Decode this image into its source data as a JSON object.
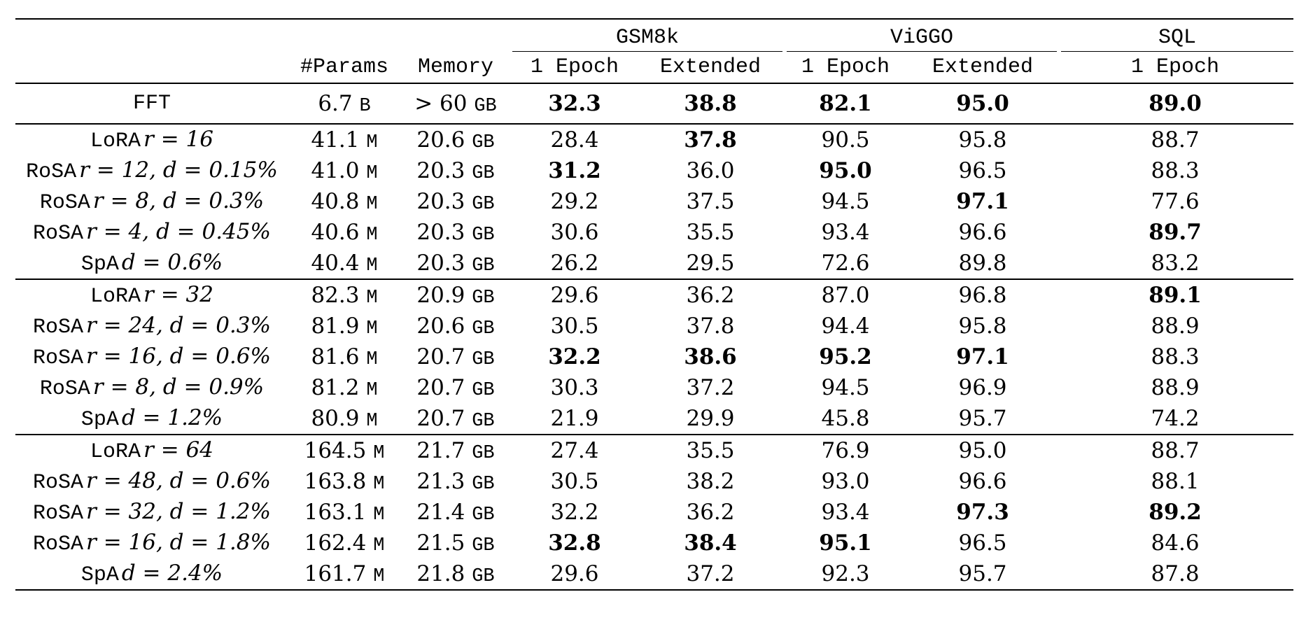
{
  "header": {
    "group_gsm8k": "GSM8k",
    "group_viggo": "ViGGO",
    "group_sql": "SQL",
    "col_params": "#Params",
    "col_memory": "Memory",
    "col_1epoch": "1 Epoch",
    "col_extended": "Extended"
  },
  "fft": {
    "method": "FFT",
    "params_num": "6.7",
    "params_unit": "B",
    "memory_num": "> 60",
    "memory_unit": "GB",
    "gsm_1": "32.3",
    "gsm_ext": "38.8",
    "viggo_1": "82.1",
    "viggo_ext": "95.0",
    "sql_1": "89.0"
  },
  "groups": [
    {
      "rows": [
        {
          "name": "LoRA",
          "cfg": "r = 16",
          "params": "41.1",
          "punit": "M",
          "mem": "20.6",
          "munit": "GB",
          "v": [
            "28.4",
            "37.8",
            "90.5",
            "95.8",
            "88.7"
          ],
          "bold": [
            false,
            true,
            false,
            false,
            false
          ]
        },
        {
          "name": "RoSA",
          "cfg": "r = 12, d = 0.15%",
          "params": "41.0",
          "punit": "M",
          "mem": "20.3",
          "munit": "GB",
          "v": [
            "31.2",
            "36.0",
            "95.0",
            "96.5",
            "88.3"
          ],
          "bold": [
            true,
            false,
            true,
            false,
            false
          ]
        },
        {
          "name": "RoSA",
          "cfg": "r = 8, d = 0.3%",
          "params": "40.8",
          "punit": "M",
          "mem": "20.3",
          "munit": "GB",
          "v": [
            "29.2",
            "37.5",
            "94.5",
            "97.1",
            "77.6"
          ],
          "bold": [
            false,
            false,
            false,
            true,
            false
          ]
        },
        {
          "name": "RoSA",
          "cfg": "r = 4, d = 0.45%",
          "params": "40.6",
          "punit": "M",
          "mem": "20.3",
          "munit": "GB",
          "v": [
            "30.6",
            "35.5",
            "93.4",
            "96.6",
            "89.7"
          ],
          "bold": [
            false,
            false,
            false,
            false,
            true
          ]
        },
        {
          "name": "SpA",
          "cfg": "d = 0.6%",
          "params": "40.4",
          "punit": "M",
          "mem": "20.3",
          "munit": "GB",
          "v": [
            "26.2",
            "29.5",
            "72.6",
            "89.8",
            "83.2"
          ],
          "bold": [
            false,
            false,
            false,
            false,
            false
          ]
        }
      ]
    },
    {
      "rows": [
        {
          "name": "LoRA",
          "cfg": "r = 32",
          "params": "82.3",
          "punit": "M",
          "mem": "20.9",
          "munit": "GB",
          "v": [
            "29.6",
            "36.2",
            "87.0",
            "96.8",
            "89.1"
          ],
          "bold": [
            false,
            false,
            false,
            false,
            true
          ]
        },
        {
          "name": "RoSA",
          "cfg": "r = 24, d = 0.3%",
          "params": "81.9",
          "punit": "M",
          "mem": "20.6",
          "munit": "GB",
          "v": [
            "30.5",
            "37.8",
            "94.4",
            "95.8",
            "88.9"
          ],
          "bold": [
            false,
            false,
            false,
            false,
            false
          ]
        },
        {
          "name": "RoSA",
          "cfg": "r = 16, d = 0.6%",
          "params": "81.6",
          "punit": "M",
          "mem": "20.7",
          "munit": "GB",
          "v": [
            "32.2",
            "38.6",
            "95.2",
            "97.1",
            "88.3"
          ],
          "bold": [
            true,
            true,
            true,
            true,
            false
          ]
        },
        {
          "name": "RoSA",
          "cfg": "r = 8, d = 0.9%",
          "params": "81.2",
          "punit": "M",
          "mem": "20.7",
          "munit": "GB",
          "v": [
            "30.3",
            "37.2",
            "94.5",
            "96.9",
            "88.9"
          ],
          "bold": [
            false,
            false,
            false,
            false,
            false
          ]
        },
        {
          "name": "SpA",
          "cfg": "d = 1.2%",
          "params": "80.9",
          "punit": "M",
          "mem": "20.7",
          "munit": "GB",
          "v": [
            "21.9",
            "29.9",
            "45.8",
            "95.7",
            "74.2"
          ],
          "bold": [
            false,
            false,
            false,
            false,
            false
          ]
        }
      ]
    },
    {
      "rows": [
        {
          "name": "LoRA",
          "cfg": "r = 64",
          "params": "164.5",
          "punit": "M",
          "mem": "21.7",
          "munit": "GB",
          "v": [
            "27.4",
            "35.5",
            "76.9",
            "95.0",
            "88.7"
          ],
          "bold": [
            false,
            false,
            false,
            false,
            false
          ]
        },
        {
          "name": "RoSA",
          "cfg": "r = 48, d = 0.6%",
          "params": "163.8",
          "punit": "M",
          "mem": "21.3",
          "munit": "GB",
          "v": [
            "30.5",
            "38.2",
            "93.0",
            "96.6",
            "88.1"
          ],
          "bold": [
            false,
            false,
            false,
            false,
            false
          ]
        },
        {
          "name": "RoSA",
          "cfg": "r = 32, d = 1.2%",
          "params": "163.1",
          "punit": "M",
          "mem": "21.4",
          "munit": "GB",
          "v": [
            "32.2",
            "36.2",
            "93.4",
            "97.3",
            "89.2"
          ],
          "bold": [
            false,
            false,
            false,
            true,
            true
          ]
        },
        {
          "name": "RoSA",
          "cfg": "r = 16, d = 1.8%",
          "params": "162.4",
          "punit": "M",
          "mem": "21.5",
          "munit": "GB",
          "v": [
            "32.8",
            "38.4",
            "95.1",
            "96.5",
            "84.6"
          ],
          "bold": [
            true,
            true,
            true,
            false,
            false
          ]
        },
        {
          "name": "SpA",
          "cfg": "d = 2.4%",
          "params": "161.7",
          "punit": "M",
          "mem": "21.8",
          "munit": "GB",
          "v": [
            "29.6",
            "37.2",
            "92.3",
            "95.7",
            "87.8"
          ],
          "bold": [
            false,
            false,
            false,
            false,
            false
          ]
        }
      ]
    }
  ]
}
